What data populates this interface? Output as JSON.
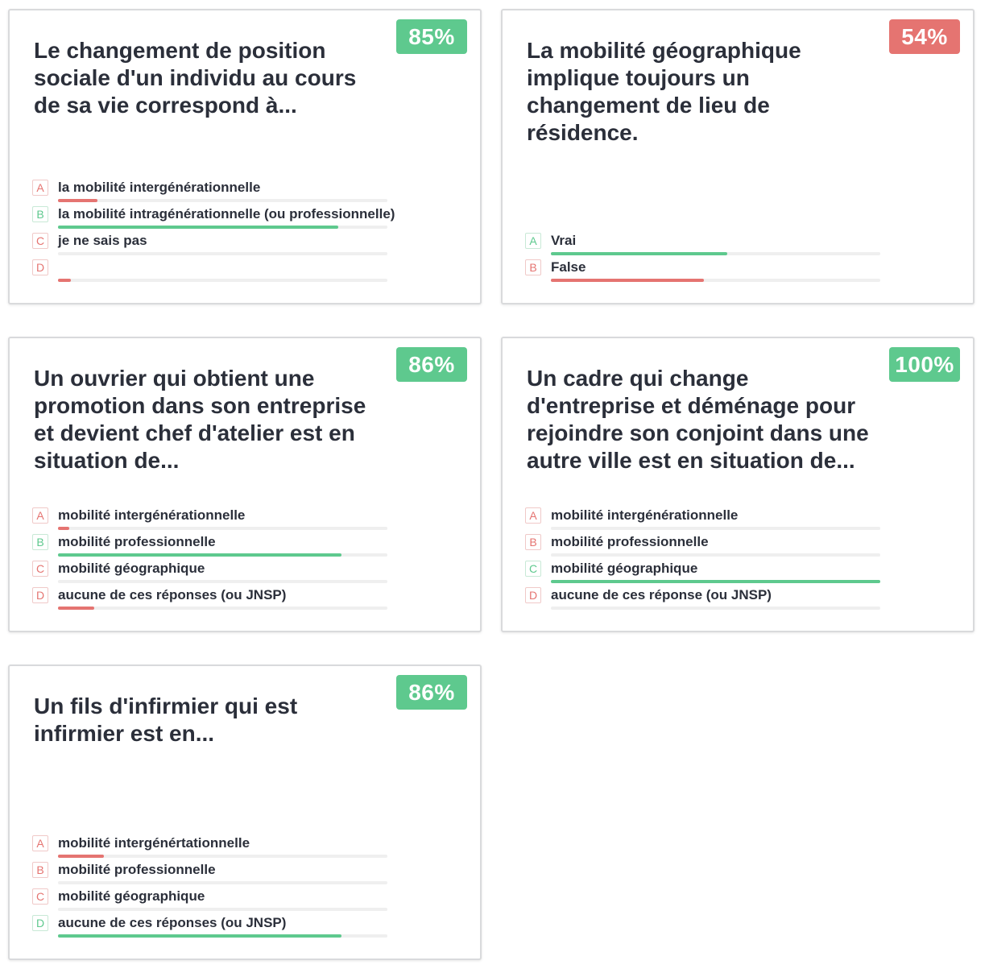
{
  "colors": {
    "correct": "#5ec98e",
    "wrong": "#e57471",
    "text": "#2b2f3a",
    "track": "#efefef"
  },
  "cards": [
    {
      "score": "85%",
      "score_status": "good",
      "question": "Le changement de position sociale d'un individu au cours de sa vie correspond à...",
      "answers": [
        {
          "letter": "A",
          "label": "la mobilité intergénérationnelle",
          "correct": false,
          "share": 0.12
        },
        {
          "letter": "B",
          "label": "la mobilité intragénérationnelle (ou professionnelle)",
          "correct": true,
          "share": 0.85
        },
        {
          "letter": "C",
          "label": "je ne sais pas",
          "correct": false,
          "share": 0.0
        },
        {
          "letter": "D",
          "label": "",
          "correct": false,
          "share": 0.04
        }
      ]
    },
    {
      "score": "54%",
      "score_status": "bad",
      "question": "La mobilité géographique implique toujours un changement de lieu de résidence.",
      "answers": [
        {
          "letter": "A",
          "label": "Vrai",
          "correct": true,
          "share": 0.535
        },
        {
          "letter": "B",
          "label": "False",
          "correct": false,
          "share": 0.465
        }
      ]
    },
    {
      "score": "86%",
      "score_status": "good",
      "question": "Un ouvrier qui obtient une promotion dans son entreprise et devient chef d'atelier est en situation de...",
      "answers": [
        {
          "letter": "A",
          "label": "mobilité intergénérationnelle",
          "correct": false,
          "share": 0.035
        },
        {
          "letter": "B",
          "label": "mobilité professionnelle",
          "correct": true,
          "share": 0.86
        },
        {
          "letter": "C",
          "label": "mobilité géographique",
          "correct": false,
          "share": 0.0
        },
        {
          "letter": "D",
          "label": "aucune de ces réponses (ou JNSP)",
          "correct": false,
          "share": 0.11
        }
      ]
    },
    {
      "score": "100%",
      "score_status": "good",
      "question": "Un cadre qui change d'entreprise et déménage pour rejoindre son conjoint dans une autre ville est en situation de...",
      "answers": [
        {
          "letter": "A",
          "label": "mobilité intergénérationnelle",
          "correct": false,
          "share": 0.0
        },
        {
          "letter": "B",
          "label": "mobilité professionnelle",
          "correct": false,
          "share": 0.0
        },
        {
          "letter": "C",
          "label": "mobilité géographique",
          "correct": true,
          "share": 1.0
        },
        {
          "letter": "D",
          "label": "aucune de ces réponse (ou JNSP)",
          "correct": false,
          "share": 0.0
        }
      ]
    },
    {
      "score": "86%",
      "score_status": "good",
      "question": "Un fils d'infirmier qui est infirmier est en...",
      "answers": [
        {
          "letter": "A",
          "label": "mobilité intergénértationnelle",
          "correct": false,
          "share": 0.14
        },
        {
          "letter": "B",
          "label": "mobilité professionnelle",
          "correct": false,
          "share": 0.0
        },
        {
          "letter": "C",
          "label": "mobilité géographique",
          "correct": false,
          "share": 0.0
        },
        {
          "letter": "D",
          "label": "aucune de ces réponses (ou JNSP)",
          "correct": true,
          "share": 0.86
        }
      ]
    }
  ]
}
